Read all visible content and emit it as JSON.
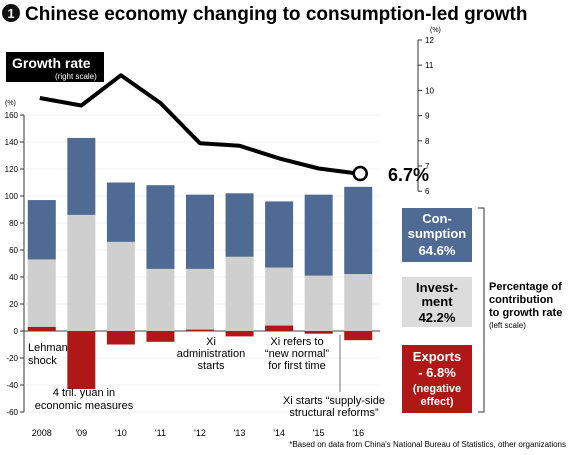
{
  "title": "Chinese economy changing to consumption-led growth",
  "title_number": "1",
  "footnote": "*Based on data from China's National Bureau of Statistics, other organizations",
  "left_axis": {
    "unit": "(%)",
    "ticks": [
      "160",
      "140",
      "120",
      "100",
      "80",
      "60",
      "40",
      "20",
      "0",
      "-20",
      "-40",
      "-60"
    ]
  },
  "right_axis": {
    "unit": "(%)",
    "ticks": [
      "12",
      "11",
      "10",
      "9",
      "8",
      "7",
      "6"
    ]
  },
  "growth_label": {
    "title": "Growth rate",
    "sub": "(right scale)"
  },
  "end_value": "6.7%",
  "legend": {
    "consumption": {
      "line1": "Con-",
      "line2": "sumption",
      "value": "64.6%"
    },
    "investment": {
      "line1": "Invest-",
      "line2": "ment",
      "value": "42.2%"
    },
    "exports": {
      "line1": "Exports",
      "line2": "- 6.8%",
      "line3": "(negative",
      "line4": "effect)"
    }
  },
  "side_note": {
    "line1": "Percentage of",
    "line2": "contribution",
    "line3": "to growth rate",
    "line4": "(left scale)"
  },
  "annotations": {
    "lehman": {
      "line1": "Lehman",
      "line2": "shock"
    },
    "stimulus": {
      "line1": "4 tril. yuan in",
      "line2": "economic measures"
    },
    "xi_admin": {
      "line1": "Xi",
      "line2": "administration",
      "line3": "starts"
    },
    "new_normal": {
      "line1": "Xi refers to",
      "line2": "“new normal”",
      "line3": "for first time"
    },
    "supply_side": {
      "line1": "Xi starts “supply-side",
      "line2": "structural reforms”"
    }
  },
  "colors": {
    "consumption": "#4f6a93",
    "investment": "#cfcfcf",
    "exports": "#b01717",
    "line": "#000000",
    "legend_invest_bg": "#dcdcdc"
  },
  "chart_data": {
    "type": "bar",
    "categories": [
      "2008",
      "'09",
      "'10",
      "'11",
      "'12",
      "'13",
      "'14",
      "'15",
      "'16"
    ],
    "series": [
      {
        "name": "Consumption",
        "values": [
          44,
          57,
          44,
          62,
          55,
          47,
          49,
          60,
          64.6
        ]
      },
      {
        "name": "Investment",
        "values": [
          53,
          86,
          66,
          46,
          46,
          55,
          47,
          41,
          42.2
        ]
      },
      {
        "name": "Exports",
        "values": [
          3,
          -43,
          -10,
          -8,
          1,
          -4,
          4,
          -2,
          -6.8
        ]
      },
      {
        "name": "Growth rate",
        "values": [
          9.7,
          9.4,
          10.6,
          9.5,
          7.9,
          7.8,
          7.3,
          6.9,
          6.7
        ]
      }
    ],
    "left_ylim": [
      -60,
      160
    ],
    "right_ylim": [
      6,
      12
    ]
  }
}
